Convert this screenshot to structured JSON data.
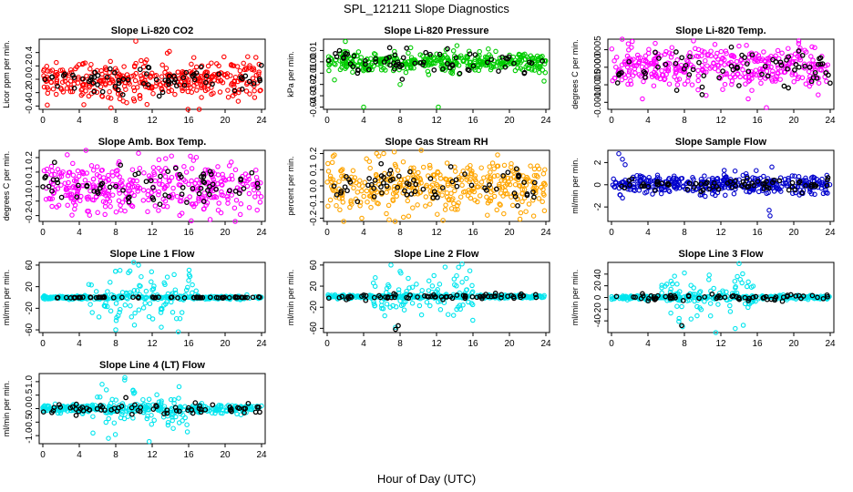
{
  "figure": {
    "title": "SPL_121211  Slope Diagnostics",
    "xlabel": "Hour of Day (UTC)"
  },
  "chart_data": [
    {
      "type": "scatter",
      "id": "li820-co2",
      "title": "Slope Li-820 CO2",
      "xlabel": "",
      "ylabel": "Licor ppm per min.",
      "xlim": [
        0,
        24
      ],
      "ylim": [
        -0.45,
        0.6
      ],
      "xticks": [
        "0",
        "4",
        "8",
        "12",
        "16",
        "20",
        "24"
      ],
      "yticks": [
        "-0.4",
        "-0.2",
        "0.0",
        "0.2",
        "0.4"
      ],
      "ytick_values": [
        -0.4,
        -0.2,
        0,
        0.2,
        0.4
      ],
      "color": "#ff0000",
      "grid": false,
      "series": [
        {
          "values": {
            "spread": 0.14,
            "extremes": [
              [
                10.2,
                0.57
              ],
              [
                4.5,
                -0.38
              ],
              [
                9.2,
                -0.35
              ]
            ]
          },
          "color": "#ff0000"
        },
        {
          "values": {
            "spread": 0.1
          },
          "color": "#000000"
        }
      ]
    },
    {
      "type": "scatter",
      "id": "li820-pressure",
      "title": "Slope Li-820 Pressure",
      "xlabel": "",
      "ylabel": "kPa per min.",
      "xlim": [
        0,
        24
      ],
      "ylim": [
        -0.042,
        0.02
      ],
      "xticks": [
        "0",
        "4",
        "8",
        "12",
        "16",
        "20",
        "24"
      ],
      "yticks": [
        "-0.04",
        "-0.03",
        "-0.02",
        "-0.01",
        "0.00",
        "0.01"
      ],
      "ytick_values": [
        -0.04,
        -0.03,
        -0.02,
        -0.01,
        0,
        0.01
      ],
      "color": "#00cc00",
      "grid": false,
      "series": [
        {
          "values": {
            "spread": 0.0045,
            "extremes": [
              [
                2.0,
                0.018
              ],
              [
                4.0,
                -0.04
              ],
              [
                12.2,
                -0.04
              ],
              [
                8.0,
                -0.02
              ],
              [
                23.8,
                -0.017
              ],
              [
                0.8,
                -0.016
              ]
            ]
          },
          "color": "#00cc00"
        },
        {
          "values": {
            "spread": 0.004
          },
          "color": "#000000"
        }
      ]
    },
    {
      "type": "scatter",
      "id": "li820-temp",
      "title": "Slope Li-820 Temp.",
      "xlabel": "",
      "ylabel": "degrees C per min.",
      "xlim": [
        0,
        24
      ],
      "ylim": [
        -0.0012,
        0.0008
      ],
      "xticks": [
        "0",
        "4",
        "8",
        "12",
        "16",
        "20",
        "24"
      ],
      "yticks": [
        "-0.0010",
        "-0.0005",
        "0.0000",
        "0.0005"
      ],
      "ytick_values": [
        -0.001,
        -0.0005,
        0,
        0.0005
      ],
      "color": "#ff00ff",
      "grid": false,
      "series": [
        {
          "values": {
            "spread": 0.0003,
            "extremes": [
              [
                9.0,
                0.00075
              ],
              [
                4.8,
                0.00068
              ],
              [
                17.0,
                -0.00115
              ],
              [
                15.0,
                -0.0009
              ]
            ]
          },
          "color": "#ff00ff"
        },
        {
          "values": {
            "spread": 0.00025
          },
          "color": "#000000"
        }
      ]
    },
    {
      "type": "scatter",
      "id": "amb-box-temp",
      "title": "Slope Amb. Box Temp.",
      "xlabel": "",
      "ylabel": "degrees C per min.",
      "xlim": [
        0,
        24
      ],
      "ylim": [
        -0.24,
        0.25
      ],
      "xticks": [
        "0",
        "4",
        "8",
        "12",
        "16",
        "20",
        "24"
      ],
      "yticks": [
        "-0.2",
        "-0.1",
        "0.0",
        "0.1",
        "0.2"
      ],
      "ytick_values": [
        -0.2,
        -0.1,
        0,
        0.1,
        0.2
      ],
      "color": "#ff00ff",
      "grid": false,
      "series": [
        {
          "values": {
            "spread": 0.085,
            "extremes": [
              [
                10.5,
                0.23
              ],
              [
                16.2,
                0.21
              ]
            ]
          },
          "color": "#ff00ff"
        },
        {
          "values": {
            "spread": 0.07
          },
          "color": "#000000"
        }
      ]
    },
    {
      "type": "scatter",
      "id": "gas-stream-rh",
      "title": "Slope Gas Stream RH",
      "xlabel": "",
      "ylabel": "percent per min.",
      "xlim": [
        0,
        24
      ],
      "ylim": [
        -0.22,
        0.22
      ],
      "xticks": [
        "0",
        "4",
        "8",
        "12",
        "16",
        "20",
        "24"
      ],
      "yticks": [
        "-0.2",
        "-0.1",
        "0.0",
        "0.1",
        "0.2"
      ],
      "ytick_values": [
        -0.2,
        -0.1,
        0,
        0.1,
        0.2
      ],
      "color": "#ffa500",
      "grid": false,
      "series": [
        {
          "values": {
            "spread": 0.08,
            "extremes": [
              [
                6.2,
                0.2
              ],
              [
                6.8,
                -0.21
              ],
              [
                3.8,
                -0.2
              ]
            ]
          },
          "color": "#ffa500"
        },
        {
          "values": {
            "spread": 0.05
          },
          "color": "#000000"
        }
      ]
    },
    {
      "type": "scatter",
      "id": "sample-flow",
      "title": "Slope Sample Flow",
      "xlabel": "",
      "ylabel": "ml/min per min.",
      "xlim": [
        0,
        24
      ],
      "ylim": [
        -3.3,
        3.1
      ],
      "xticks": [
        "0",
        "4",
        "8",
        "12",
        "16",
        "20",
        "24"
      ],
      "yticks": [
        "-2",
        "0",
        "2"
      ],
      "ytick_values": [
        -2,
        0,
        2
      ],
      "color": "#0000cc",
      "grid": false,
      "series": [
        {
          "values": {
            "spread": 0.45,
            "extremes": [
              [
                0.8,
                2.8
              ],
              [
                1.2,
                2.3
              ],
              [
                1.5,
                1.8
              ],
              [
                17.3,
                -2.3
              ],
              [
                17.4,
                -2.8
              ],
              [
                17.6,
                1.6
              ]
            ]
          },
          "color": "#0000cc"
        },
        {
          "values": {
            "spread": 0.25
          },
          "color": "#000000"
        }
      ]
    },
    {
      "type": "scatter",
      "id": "line1-flow",
      "title": "Slope Line 1 Flow",
      "xlabel": "",
      "ylabel": "ml/min per min.",
      "xlim": [
        0,
        24
      ],
      "ylim": [
        -65,
        65
      ],
      "xticks": [
        "0",
        "4",
        "8",
        "12",
        "16",
        "20",
        "24"
      ],
      "yticks": [
        "-60",
        "-20",
        "20",
        "60"
      ],
      "ytick_values": [
        -60,
        -20,
        20,
        60
      ],
      "color": "#00e5ee",
      "grid": false,
      "series": [
        {
          "values": {
            "spread": 1.5,
            "burst": [
              5,
              17,
              25
            ],
            "extremes": [
              [
                8.0,
                -60
              ],
              [
                10.5,
                60
              ],
              [
                13.0,
                -55
              ]
            ]
          },
          "color": "#00e5ee"
        },
        {
          "values": {
            "spread": 0.5
          },
          "color": "#000000"
        }
      ]
    },
    {
      "type": "scatter",
      "id": "line2-flow",
      "title": "Slope Line 2 Flow",
      "xlabel": "",
      "ylabel": "ml/min per min.",
      "xlim": [
        0,
        24
      ],
      "ylim": [
        -68,
        65
      ],
      "xticks": [
        "0",
        "4",
        "8",
        "12",
        "16",
        "20",
        "24"
      ],
      "yticks": [
        "-60",
        "-20",
        "20",
        "60"
      ],
      "ytick_values": [
        -60,
        -20,
        20,
        60
      ],
      "color": "#00e5ee",
      "grid": false,
      "series": [
        {
          "values": {
            "spread": 1.5,
            "burst": [
              5,
              16.5,
              22
            ],
            "extremes": [
              [
                7.0,
                60
              ],
              [
                7.5,
                -58
              ],
              [
                14.8,
                62
              ],
              [
                8.0,
                48
              ]
            ]
          },
          "color": "#00e5ee"
        },
        {
          "values": {
            "spread": 2.5,
            "extremes": [
              [
                7.5,
                -62
              ],
              [
                7.8,
                -55
              ]
            ]
          },
          "color": "#000000"
        }
      ]
    },
    {
      "type": "scatter",
      "id": "line3-flow",
      "title": "Slope Line 3 Flow",
      "xlabel": "",
      "ylabel": "ml/min per min.",
      "xlim": [
        0,
        24
      ],
      "ylim": [
        -60,
        60
      ],
      "xticks": [
        "0",
        "4",
        "8",
        "12",
        "16",
        "20",
        "24"
      ],
      "yticks": [
        "-40",
        "-20",
        "0",
        "20",
        "40"
      ],
      "ytick_values": [
        -40,
        -20,
        0,
        20,
        40
      ],
      "color": "#00e5ee",
      "grid": false,
      "series": [
        {
          "values": {
            "spread": 1.5,
            "burst": [
              5.5,
              16,
              20
            ],
            "extremes": [
              [
                8.0,
                42
              ],
              [
                7.8,
                -50
              ],
              [
                14.0,
                58
              ]
            ]
          },
          "color": "#00e5ee"
        },
        {
          "values": {
            "spread": 2.5,
            "extremes": [
              [
                7.7,
                -48
              ]
            ]
          },
          "color": "#000000"
        }
      ]
    },
    {
      "type": "scatter",
      "id": "line4-flow",
      "title": "Slope Line 4 (LT) Flow",
      "xlabel": "",
      "ylabel": "ml/min per min.",
      "xlim": [
        0,
        24
      ],
      "ylim": [
        -1.3,
        1.3
      ],
      "xticks": [
        "0",
        "4",
        "8",
        "12",
        "16",
        "20",
        "24"
      ],
      "yticks": [
        "-1.0",
        "-0.5",
        "0.0",
        "0.5",
        "1.0"
      ],
      "ytick_values": [
        -1,
        -0.5,
        0,
        0.5,
        1
      ],
      "color": "#00e5ee",
      "grid": false,
      "series": [
        {
          "values": {
            "spread": 0.07,
            "burst": [
              5,
              16,
              0.4
            ],
            "extremes": [
              [
                7.2,
                -1.1
              ],
              [
                9.0,
                1.15
              ],
              [
                6.5,
                0.9
              ]
            ]
          },
          "color": "#00e5ee"
        },
        {
          "values": {
            "spread": 0.12
          },
          "color": "#000000"
        }
      ]
    }
  ]
}
